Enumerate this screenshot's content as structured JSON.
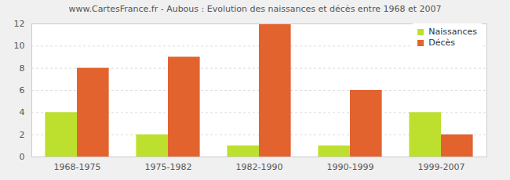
{
  "chart_data": {
    "type": "bar",
    "title": "www.CartesFrance.fr - Aubous : Evolution des naissances et décès entre 1968 et 2007",
    "categories": [
      "1968-1975",
      "1975-1982",
      "1982-1990",
      "1990-1999",
      "1999-2007"
    ],
    "series": [
      {
        "name": "Naissances",
        "color": "#bde02e",
        "values": [
          4,
          2,
          1,
          1,
          4
        ]
      },
      {
        "name": "Décès",
        "color": "#e2632e",
        "values": [
          8,
          9,
          12,
          6,
          2
        ]
      }
    ],
    "ylim": [
      0,
      12
    ],
    "yticks": [
      0,
      2,
      4,
      6,
      8,
      10,
      12
    ],
    "grid": true,
    "legend": "top-right"
  }
}
